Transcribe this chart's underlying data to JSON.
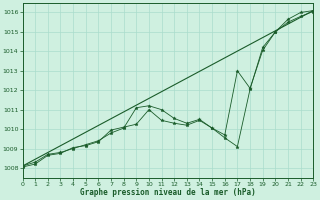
{
  "title": "Graphe pression niveau de la mer (hPa)",
  "bg_color": "#cff0e0",
  "grid_color": "#aaddcc",
  "line_color": "#1a5c2a",
  "x_min": 0,
  "x_max": 23,
  "y_min": 1007.5,
  "y_max": 1016.5,
  "y_ticks": [
    1008,
    1009,
    1010,
    1011,
    1012,
    1013,
    1014,
    1015,
    1016
  ],
  "x_ticks": [
    0,
    1,
    2,
    3,
    4,
    5,
    6,
    7,
    8,
    9,
    10,
    11,
    12,
    13,
    14,
    15,
    16,
    17,
    18,
    19,
    20,
    21,
    22,
    23
  ],
  "series1_x": [
    0,
    1,
    2,
    3,
    4,
    5,
    6,
    7,
    8,
    9,
    10,
    11,
    12,
    13,
    14,
    15,
    16,
    17,
    18,
    19,
    20,
    21,
    22,
    23
  ],
  "series1_y": [
    1008.1,
    1008.3,
    1008.7,
    1008.8,
    1009.0,
    1009.2,
    1009.4,
    1009.8,
    1010.05,
    1011.1,
    1011.2,
    1011.0,
    1010.55,
    1010.3,
    1010.5,
    1010.05,
    1009.55,
    1009.1,
    1012.05,
    1014.2,
    1015.0,
    1015.65,
    1016.0,
    1016.1
  ],
  "series2_x": [
    0,
    1,
    2,
    3,
    4,
    5,
    6,
    7,
    8,
    9,
    10,
    11,
    12,
    13,
    14,
    15,
    16,
    17,
    18,
    19,
    20,
    21,
    22,
    23
  ],
  "series2_y": [
    1008.05,
    1008.2,
    1008.65,
    1008.75,
    1009.05,
    1009.15,
    1009.35,
    1009.95,
    1010.1,
    1010.25,
    1011.0,
    1010.45,
    1010.3,
    1010.2,
    1010.45,
    1010.05,
    1009.7,
    1013.0,
    1012.1,
    1014.05,
    1015.0,
    1015.5,
    1015.8,
    1016.05
  ],
  "trend_x": [
    0,
    23
  ],
  "trend_y": [
    1008.1,
    1016.1
  ]
}
